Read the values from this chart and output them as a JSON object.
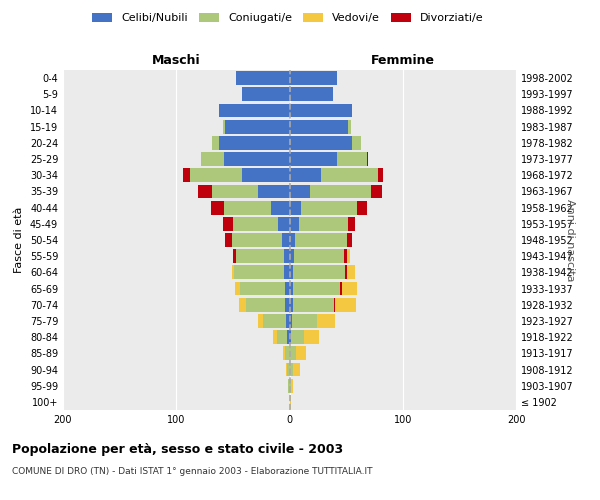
{
  "age_groups": [
    "100+",
    "95-99",
    "90-94",
    "85-89",
    "80-84",
    "75-79",
    "70-74",
    "65-69",
    "60-64",
    "55-59",
    "50-54",
    "45-49",
    "40-44",
    "35-39",
    "30-34",
    "25-29",
    "20-24",
    "15-19",
    "10-14",
    "5-9",
    "0-4"
  ],
  "birth_years": [
    "≤ 1902",
    "1903-1907",
    "1908-1912",
    "1913-1917",
    "1918-1922",
    "1923-1927",
    "1928-1932",
    "1933-1937",
    "1938-1942",
    "1943-1947",
    "1948-1952",
    "1953-1957",
    "1958-1962",
    "1963-1967",
    "1968-1972",
    "1973-1977",
    "1978-1982",
    "1983-1987",
    "1988-1992",
    "1993-1997",
    "1998-2002"
  ],
  "males": {
    "celibi": [
      0,
      0,
      0,
      0,
      2,
      3,
      4,
      4,
      5,
      5,
      7,
      10,
      16,
      28,
      42,
      58,
      62,
      57,
      62,
      42,
      47
    ],
    "coniugati": [
      0,
      1,
      2,
      4,
      9,
      20,
      34,
      40,
      44,
      42,
      44,
      40,
      42,
      40,
      46,
      20,
      6,
      2,
      0,
      0,
      0
    ],
    "vedovi": [
      0,
      0,
      1,
      2,
      4,
      5,
      7,
      4,
      2,
      1,
      0,
      0,
      0,
      0,
      0,
      0,
      0,
      0,
      0,
      0,
      0
    ],
    "divorziati": [
      0,
      0,
      0,
      0,
      0,
      0,
      0,
      0,
      0,
      3,
      6,
      9,
      11,
      13,
      6,
      0,
      0,
      0,
      0,
      0,
      0
    ]
  },
  "females": {
    "nubili": [
      0,
      0,
      0,
      0,
      1,
      2,
      3,
      3,
      3,
      4,
      5,
      8,
      10,
      18,
      28,
      42,
      55,
      52,
      55,
      38,
      42
    ],
    "coniugate": [
      0,
      1,
      3,
      6,
      12,
      22,
      36,
      42,
      46,
      44,
      46,
      44,
      50,
      54,
      50,
      26,
      8,
      2,
      0,
      0,
      0
    ],
    "vedove": [
      1,
      2,
      6,
      9,
      13,
      16,
      20,
      15,
      9,
      5,
      2,
      1,
      0,
      0,
      0,
      0,
      0,
      0,
      0,
      0,
      0
    ],
    "divorziate": [
      0,
      0,
      0,
      0,
      0,
      0,
      1,
      1,
      2,
      3,
      4,
      6,
      8,
      10,
      5,
      1,
      0,
      0,
      0,
      0,
      0
    ]
  },
  "colors": {
    "celibi_nubili": "#4472C4",
    "coniugati": "#adc87a",
    "vedovi": "#F5C842",
    "divorziati": "#C0000C"
  },
  "title": "Popolazione per età, sesso e stato civile - 2003",
  "subtitle": "COMUNE DI DRO (TN) - Dati ISTAT 1° gennaio 2003 - Elaborazione TUTTITALIA.IT",
  "xlabel_left": "Maschi",
  "xlabel_right": "Femmine",
  "ylabel": "Fasce di età",
  "ylabel_right": "Anni di nascita",
  "xlim": 200,
  "background_color": "#ffffff",
  "plot_bg": "#ebebeb",
  "grid_color": "#ffffff"
}
